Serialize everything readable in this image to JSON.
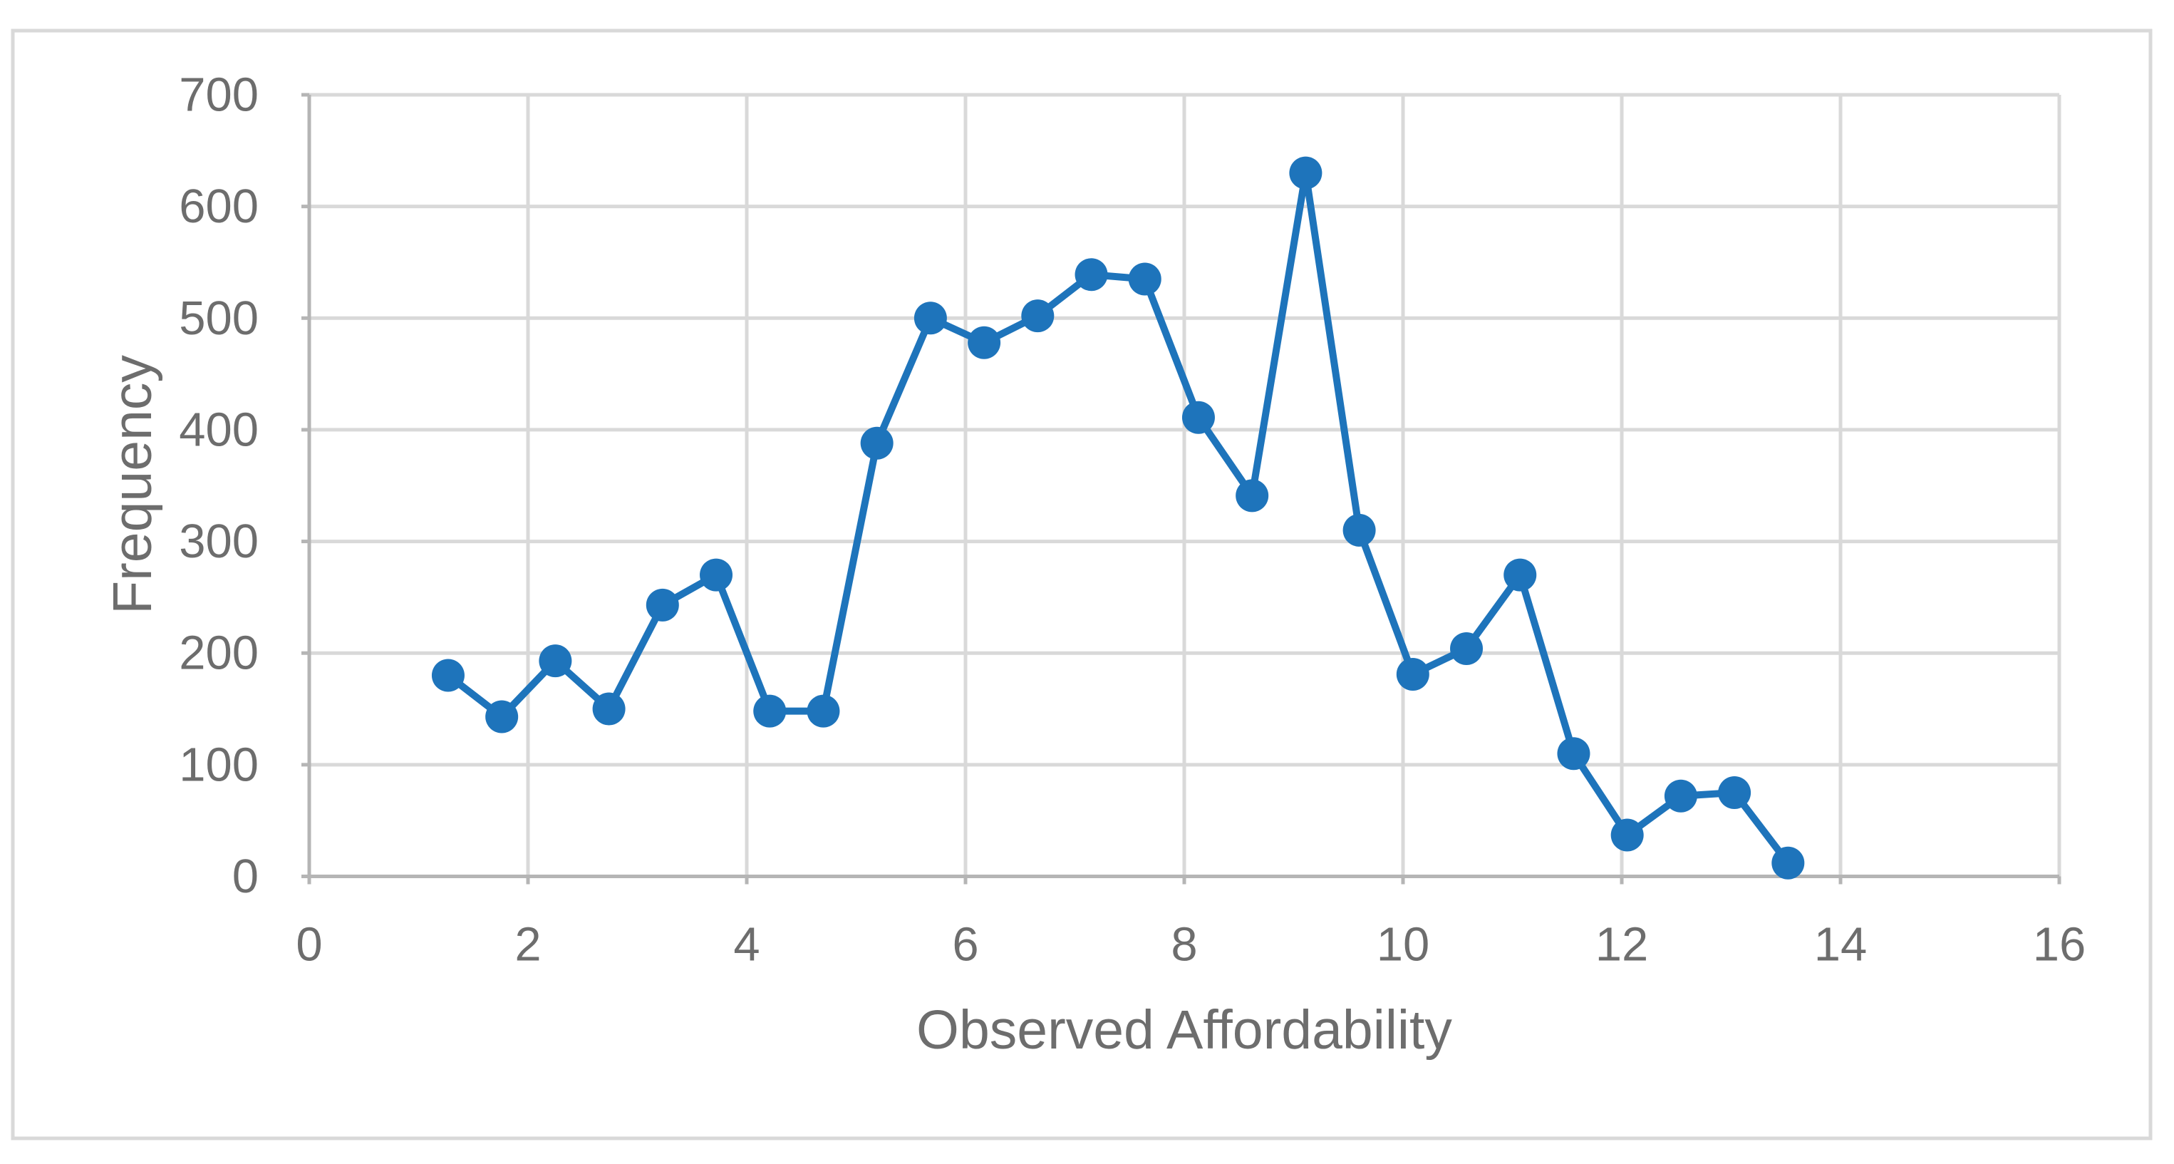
{
  "figure": {
    "background": "#ffffff",
    "border_color": "#d9d9d9"
  },
  "chart_data": {
    "type": "line",
    "title": "",
    "xlabel": "Observed Affordability",
    "ylabel": "Frequency",
    "x": [
      1.27,
      1.76,
      2.25,
      2.74,
      3.23,
      3.72,
      4.21,
      4.7,
      5.19,
      5.68,
      6.17,
      6.66,
      7.15,
      7.64,
      8.13,
      8.62,
      9.11,
      9.6,
      10.09,
      10.58,
      11.07,
      11.56,
      12.05,
      12.54,
      13.03,
      13.52
    ],
    "series": [
      {
        "name": "Frequency",
        "color": "#1e74bb",
        "values": [
          180,
          143,
          193,
          150,
          243,
          270,
          148,
          148,
          388,
          500,
          478,
          502,
          539,
          535,
          411,
          341,
          630,
          310,
          181,
          204,
          270,
          110,
          37,
          72,
          75,
          12
        ]
      }
    ],
    "xlim": [
      0,
      16
    ],
    "ylim": [
      0,
      700
    ],
    "x_ticks": [
      0,
      2,
      4,
      6,
      8,
      10,
      12,
      14,
      16
    ],
    "y_ticks": [
      0,
      100,
      200,
      300,
      400,
      500,
      600,
      700
    ],
    "grid": true,
    "legend": false,
    "grid_color": "#d9d9d9",
    "axis_color": "#b5b5b5",
    "text_color": "#6d6d6d",
    "marker": "circle"
  }
}
